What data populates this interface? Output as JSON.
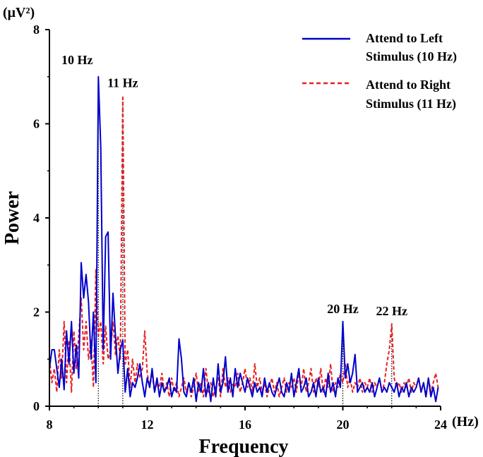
{
  "chart_data": {
    "type": "line",
    "xlabel": "Frequency",
    "xunit": "(Hz)",
    "ylabel": "Power",
    "yunit": "(μV²)",
    "xlim": [
      8,
      24
    ],
    "ylim": [
      0,
      8
    ],
    "xticks": [
      8,
      12,
      16,
      20,
      24
    ],
    "yticks": [
      0,
      2,
      4,
      6,
      8
    ],
    "grid": false,
    "legend_position": "top-right",
    "series": [
      {
        "name": "Attend to Left Stimulus (10 Hz)",
        "color": "#0000cc",
        "style": "solid",
        "points": [
          [
            8.0,
            0.8
          ],
          [
            8.1,
            1.2
          ],
          [
            8.2,
            1.2
          ],
          [
            8.3,
            0.8
          ],
          [
            8.4,
            0.4
          ],
          [
            8.5,
            1.0
          ],
          [
            8.6,
            0.35
          ],
          [
            8.7,
            1.6
          ],
          [
            8.8,
            0.9
          ],
          [
            8.9,
            1.8
          ],
          [
            9.0,
            0.7
          ],
          [
            9.1,
            1.3
          ],
          [
            9.2,
            0.6
          ],
          [
            9.3,
            3.05
          ],
          [
            9.4,
            2.3
          ],
          [
            9.5,
            2.8
          ],
          [
            9.6,
            2.2
          ],
          [
            9.7,
            1.0
          ],
          [
            9.8,
            2.0
          ],
          [
            9.9,
            0.5
          ],
          [
            10.0,
            7.0
          ],
          [
            10.1,
            5.5
          ],
          [
            10.2,
            1.2
          ],
          [
            10.3,
            3.6
          ],
          [
            10.4,
            3.7
          ],
          [
            10.5,
            1.0
          ],
          [
            10.6,
            2.4
          ],
          [
            10.7,
            1.5
          ],
          [
            10.8,
            0.7
          ],
          [
            10.9,
            1.2
          ],
          [
            11.0,
            1.4
          ],
          [
            11.1,
            0.3
          ],
          [
            11.2,
            0.8
          ],
          [
            11.3,
            0.2
          ],
          [
            11.4,
            0.5
          ],
          [
            11.5,
            0.4
          ],
          [
            11.6,
            0.6
          ],
          [
            11.7,
            0.9
          ],
          [
            11.8,
            0.5
          ],
          [
            11.9,
            0.2
          ],
          [
            12.0,
            0.6
          ],
          [
            12.1,
            0.4
          ],
          [
            12.2,
            0.8
          ],
          [
            12.3,
            0.3
          ],
          [
            12.4,
            0.6
          ],
          [
            12.5,
            0.2
          ],
          [
            12.6,
            0.5
          ],
          [
            12.7,
            0.3
          ],
          [
            12.8,
            0.4
          ],
          [
            12.9,
            0.6
          ],
          [
            13.0,
            0.2
          ],
          [
            13.1,
            0.4
          ],
          [
            13.2,
            0.3
          ],
          [
            13.3,
            1.43
          ],
          [
            13.4,
            1.0
          ],
          [
            13.5,
            0.3
          ],
          [
            13.6,
            0.2
          ],
          [
            13.7,
            0.5
          ],
          [
            13.8,
            0.3
          ],
          [
            13.9,
            0.6
          ],
          [
            14.0,
            0.1
          ],
          [
            14.1,
            0.5
          ],
          [
            14.2,
            0.3
          ],
          [
            14.3,
            0.8
          ],
          [
            14.4,
            0.2
          ],
          [
            14.5,
            0.5
          ],
          [
            14.6,
            0.1
          ],
          [
            14.7,
            0.6
          ],
          [
            14.8,
            0.2
          ],
          [
            14.9,
            0.9
          ],
          [
            15.0,
            0.3
          ],
          [
            15.1,
            0.5
          ],
          [
            15.2,
            1.05
          ],
          [
            15.3,
            0.3
          ],
          [
            15.4,
            0.6
          ],
          [
            15.5,
            0.2
          ],
          [
            15.6,
            0.8
          ],
          [
            15.7,
            0.4
          ],
          [
            15.8,
            0.7
          ],
          [
            15.9,
            0.5
          ],
          [
            16.0,
            0.3
          ],
          [
            16.1,
            0.6
          ],
          [
            16.2,
            0.4
          ],
          [
            16.3,
            0.2
          ],
          [
            16.4,
            0.5
          ],
          [
            16.5,
            0.3
          ],
          [
            16.6,
            0.4
          ],
          [
            16.7,
            0.2
          ],
          [
            16.8,
            0.6
          ],
          [
            16.9,
            0.3
          ],
          [
            17.0,
            0.5
          ],
          [
            17.1,
            0.3
          ],
          [
            17.2,
            0.2
          ],
          [
            17.3,
            0.4
          ],
          [
            17.4,
            0.6
          ],
          [
            17.5,
            0.3
          ],
          [
            17.6,
            0.2
          ],
          [
            17.7,
            0.5
          ],
          [
            17.8,
            0.3
          ],
          [
            17.9,
            0.7
          ],
          [
            18.0,
            0.2
          ],
          [
            18.1,
            0.5
          ],
          [
            18.2,
            0.8
          ],
          [
            18.3,
            0.3
          ],
          [
            18.4,
            0.4
          ],
          [
            18.5,
            0.6
          ],
          [
            18.6,
            0.2
          ],
          [
            18.7,
            0.3
          ],
          [
            18.8,
            0.5
          ],
          [
            18.9,
            0.2
          ],
          [
            19.0,
            0.6
          ],
          [
            19.1,
            0.3
          ],
          [
            19.2,
            0.4
          ],
          [
            19.3,
            0.2
          ],
          [
            19.4,
            0.7
          ],
          [
            19.5,
            0.3
          ],
          [
            19.6,
            0.5
          ],
          [
            19.7,
            0.2
          ],
          [
            19.8,
            0.6
          ],
          [
            19.9,
            0.4
          ],
          [
            20.0,
            1.8
          ],
          [
            20.1,
            0.6
          ],
          [
            20.2,
            0.9
          ],
          [
            20.3,
            0.5
          ],
          [
            20.4,
            0.7
          ],
          [
            20.5,
            1.1
          ],
          [
            20.6,
            0.3
          ],
          [
            20.7,
            0.4
          ],
          [
            20.8,
            0.5
          ],
          [
            20.9,
            0.3
          ],
          [
            21.0,
            0.4
          ],
          [
            21.1,
            0.3
          ],
          [
            21.2,
            0.5
          ],
          [
            21.3,
            0.2
          ],
          [
            21.4,
            0.4
          ],
          [
            21.5,
            0.6
          ],
          [
            21.6,
            0.3
          ],
          [
            21.7,
            0.4
          ],
          [
            21.8,
            0.3
          ],
          [
            21.9,
            0.5
          ],
          [
            22.0,
            0.4
          ],
          [
            22.1,
            0.3
          ],
          [
            22.2,
            0.5
          ],
          [
            22.3,
            0.2
          ],
          [
            22.4,
            0.4
          ],
          [
            22.5,
            0.3
          ],
          [
            22.6,
            0.5
          ],
          [
            22.7,
            0.2
          ],
          [
            22.8,
            0.4
          ],
          [
            22.9,
            0.3
          ],
          [
            23.0,
            0.4
          ],
          [
            23.1,
            0.6
          ],
          [
            23.2,
            0.3
          ],
          [
            23.3,
            0.5
          ],
          [
            23.4,
            0.2
          ],
          [
            23.5,
            0.6
          ],
          [
            23.6,
            0.2
          ],
          [
            23.7,
            0.4
          ],
          [
            23.8,
            0.1
          ],
          [
            23.9,
            0.4
          ]
        ]
      },
      {
        "name": "Attend to Right Stimulus (11 Hz)",
        "color": "#e82020",
        "style": "dashed",
        "points": [
          [
            8.0,
            1.0
          ],
          [
            8.1,
            0.5
          ],
          [
            8.2,
            0.8
          ],
          [
            8.3,
            0.3
          ],
          [
            8.4,
            1.2
          ],
          [
            8.5,
            0.6
          ],
          [
            8.6,
            1.8
          ],
          [
            8.7,
            0.5
          ],
          [
            8.8,
            1.4
          ],
          [
            8.9,
            0.3
          ],
          [
            9.0,
            1.6
          ],
          [
            9.1,
            0.8
          ],
          [
            9.2,
            1.5
          ],
          [
            9.3,
            2.3
          ],
          [
            9.4,
            1.2
          ],
          [
            9.5,
            1.8
          ],
          [
            9.6,
            1.0
          ],
          [
            9.7,
            1.4
          ],
          [
            9.8,
            0.4
          ],
          [
            9.9,
            2.9
          ],
          [
            10.0,
            1.5
          ],
          [
            10.1,
            1.8
          ],
          [
            10.2,
            0.9
          ],
          [
            10.3,
            1.7
          ],
          [
            10.4,
            1.0
          ],
          [
            10.5,
            1.2
          ],
          [
            10.6,
            1.8
          ],
          [
            10.7,
            1.1
          ],
          [
            10.8,
            1.5
          ],
          [
            10.9,
            1.0
          ],
          [
            11.0,
            6.6
          ],
          [
            11.1,
            0.9
          ],
          [
            11.2,
            1.2
          ],
          [
            11.3,
            0.4
          ],
          [
            11.4,
            1.0
          ],
          [
            11.5,
            0.5
          ],
          [
            11.6,
            0.9
          ],
          [
            11.7,
            0.6
          ],
          [
            11.8,
            0.8
          ],
          [
            11.9,
            1.6
          ],
          [
            12.0,
            0.7
          ],
          [
            12.1,
            0.4
          ],
          [
            12.2,
            0.7
          ],
          [
            12.3,
            0.3
          ],
          [
            12.4,
            0.5
          ],
          [
            12.5,
            0.4
          ],
          [
            12.6,
            0.7
          ],
          [
            12.7,
            0.3
          ],
          [
            12.8,
            0.5
          ],
          [
            12.9,
            0.2
          ],
          [
            13.0,
            0.6
          ],
          [
            13.1,
            0.3
          ],
          [
            13.2,
            0.5
          ],
          [
            13.3,
            0.2
          ],
          [
            13.4,
            0.4
          ],
          [
            13.5,
            0.6
          ],
          [
            13.6,
            0.3
          ],
          [
            13.7,
            0.5
          ],
          [
            13.8,
            0.2
          ],
          [
            13.9,
            0.4
          ],
          [
            14.0,
            0.7
          ],
          [
            14.1,
            0.3
          ],
          [
            14.2,
            0.5
          ],
          [
            14.3,
            0.2
          ],
          [
            14.4,
            0.8
          ],
          [
            14.5,
            0.3
          ],
          [
            14.6,
            0.5
          ],
          [
            14.7,
            0.2
          ],
          [
            14.8,
            0.4
          ],
          [
            14.9,
            0.6
          ],
          [
            15.0,
            0.2
          ],
          [
            15.1,
            0.8
          ],
          [
            15.2,
            0.4
          ],
          [
            15.3,
            0.6
          ],
          [
            15.4,
            0.3
          ],
          [
            15.5,
            0.5
          ],
          [
            15.6,
            0.4
          ],
          [
            15.7,
            0.7
          ],
          [
            15.8,
            0.3
          ],
          [
            15.9,
            0.5
          ],
          [
            16.0,
            0.8
          ],
          [
            16.1,
            0.4
          ],
          [
            16.2,
            0.6
          ],
          [
            16.3,
            0.3
          ],
          [
            16.4,
            0.9
          ],
          [
            16.5,
            0.4
          ],
          [
            16.6,
            0.6
          ],
          [
            16.7,
            0.3
          ],
          [
            16.8,
            0.5
          ],
          [
            16.9,
            0.2
          ],
          [
            17.0,
            0.4
          ],
          [
            17.1,
            0.6
          ],
          [
            17.2,
            0.3
          ],
          [
            17.3,
            0.5
          ],
          [
            17.4,
            0.2
          ],
          [
            17.5,
            0.4
          ],
          [
            17.6,
            0.6
          ],
          [
            17.7,
            0.3
          ],
          [
            17.8,
            0.5
          ],
          [
            17.9,
            0.4
          ],
          [
            18.0,
            0.6
          ],
          [
            18.1,
            0.3
          ],
          [
            18.2,
            0.7
          ],
          [
            18.3,
            0.4
          ],
          [
            18.4,
            0.8
          ],
          [
            18.5,
            0.3
          ],
          [
            18.6,
            0.5
          ],
          [
            18.7,
            0.8
          ],
          [
            18.8,
            0.3
          ],
          [
            18.9,
            0.6
          ],
          [
            19.0,
            0.4
          ],
          [
            19.1,
            0.8
          ],
          [
            19.2,
            0.3
          ],
          [
            19.3,
            0.6
          ],
          [
            19.4,
            0.4
          ],
          [
            19.5,
            0.9
          ],
          [
            19.6,
            0.3
          ],
          [
            19.7,
            0.5
          ],
          [
            19.8,
            0.4
          ],
          [
            19.9,
            0.7
          ],
          [
            20.0,
            0.5
          ],
          [
            20.1,
            0.9
          ],
          [
            20.2,
            0.4
          ],
          [
            20.3,
            0.6
          ],
          [
            20.4,
            0.3
          ],
          [
            20.5,
            0.5
          ],
          [
            20.6,
            0.4
          ],
          [
            20.7,
            0.6
          ],
          [
            20.8,
            0.3
          ],
          [
            20.9,
            0.5
          ],
          [
            21.0,
            0.4
          ],
          [
            21.1,
            0.6
          ],
          [
            21.2,
            0.3
          ],
          [
            21.3,
            0.5
          ],
          [
            21.4,
            0.4
          ],
          [
            21.5,
            0.6
          ],
          [
            21.6,
            0.3
          ],
          [
            21.7,
            0.5
          ],
          [
            21.8,
            0.9
          ],
          [
            21.9,
            1.2
          ],
          [
            22.0,
            1.75
          ],
          [
            22.1,
            0.6
          ],
          [
            22.2,
            0.4
          ],
          [
            22.3,
            0.5
          ],
          [
            22.4,
            0.3
          ],
          [
            22.5,
            0.5
          ],
          [
            22.6,
            0.4
          ],
          [
            22.7,
            0.6
          ],
          [
            22.8,
            0.3
          ],
          [
            22.9,
            0.5
          ],
          [
            23.0,
            0.4
          ],
          [
            23.1,
            0.6
          ],
          [
            23.2,
            0.3
          ],
          [
            23.3,
            0.5
          ],
          [
            23.4,
            0.2
          ],
          [
            23.5,
            0.6
          ],
          [
            23.6,
            0.3
          ],
          [
            23.7,
            0.5
          ],
          [
            23.8,
            0.7
          ],
          [
            23.9,
            0.4
          ]
        ]
      }
    ],
    "annotations": [
      {
        "text": "10 Hz",
        "x": 10,
        "y": 7.0
      },
      {
        "text": "11 Hz",
        "x": 11,
        "y": 6.6
      },
      {
        "text": "20 Hz",
        "x": 20,
        "y": 1.8
      },
      {
        "text": "22 Hz",
        "x": 22,
        "y": 1.75
      }
    ]
  }
}
